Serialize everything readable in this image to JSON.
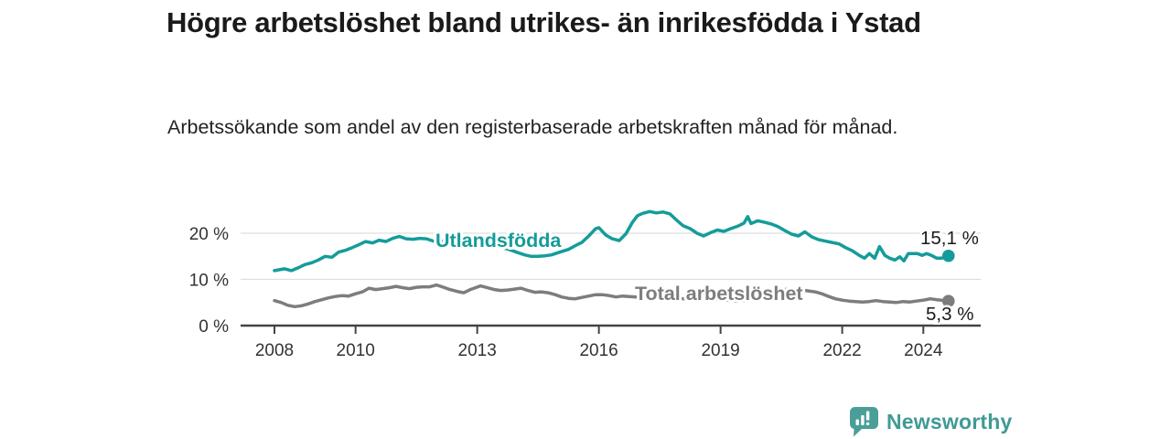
{
  "header": {
    "title": "Högre arbetslöshet bland utrikes- än inrikesfödda i Ystad",
    "subtitle": "Arbetssökande som andel av den registerbaserade arbetskraften månad för månad."
  },
  "chart_data": {
    "type": "line",
    "title": "Högre arbetslöshet bland utrikes- än inrikesfödda i Ystad",
    "subtitle": "Arbetssökande som andel av den registerbaserade arbetskraften månad för månad.",
    "xlabel": "",
    "ylabel": "",
    "grid": "horizontal",
    "legend_position": "inline-labels",
    "xlim": [
      2007.2,
      2025.3
    ],
    "ylim": [
      0,
      26
    ],
    "x_tick_labels": [
      "2008",
      "2010",
      "2013",
      "2016",
      "2019",
      "2022",
      "2024"
    ],
    "x_tick_years": [
      2008,
      2010,
      2013,
      2016,
      2019,
      2022,
      2024
    ],
    "y_ticks": [
      20,
      10,
      0
    ],
    "y_tick_labels": [
      "20 %",
      "10 %",
      "0 %"
    ],
    "series": [
      {
        "name": "Utlandsfödda",
        "color": "#149c9a",
        "end_label": "15,1 %",
        "end_value": 15.1,
        "points": [
          [
            2008.0,
            11.9
          ],
          [
            2008.25,
            12.3
          ],
          [
            2008.42,
            11.9
          ],
          [
            2008.58,
            12.5
          ],
          [
            2008.75,
            13.2
          ],
          [
            2008.92,
            13.6
          ],
          [
            2009.08,
            14.2
          ],
          [
            2009.25,
            15.0
          ],
          [
            2009.42,
            14.8
          ],
          [
            2009.58,
            15.9
          ],
          [
            2009.75,
            16.3
          ],
          [
            2009.92,
            16.9
          ],
          [
            2010.08,
            17.5
          ],
          [
            2010.25,
            18.2
          ],
          [
            2010.42,
            17.9
          ],
          [
            2010.58,
            18.5
          ],
          [
            2010.75,
            18.2
          ],
          [
            2010.92,
            18.9
          ],
          [
            2011.08,
            19.3
          ],
          [
            2011.25,
            18.8
          ],
          [
            2011.42,
            18.7
          ],
          [
            2011.58,
            18.9
          ],
          [
            2011.75,
            18.8
          ],
          [
            2011.92,
            18.3
          ],
          [
            2012.08,
            18.4
          ],
          [
            2012.25,
            18.1
          ],
          [
            2012.5,
            17.8
          ],
          [
            2012.75,
            17.6
          ],
          [
            2013.0,
            17.4
          ],
          [
            2013.25,
            17.2
          ],
          [
            2013.5,
            17.0
          ],
          [
            2013.75,
            16.6
          ],
          [
            2014.0,
            15.8
          ],
          [
            2014.17,
            15.3
          ],
          [
            2014.33,
            15.0
          ],
          [
            2014.5,
            15.0
          ],
          [
            2014.67,
            15.1
          ],
          [
            2014.83,
            15.3
          ],
          [
            2015.0,
            15.8
          ],
          [
            2015.25,
            16.5
          ],
          [
            2015.42,
            17.3
          ],
          [
            2015.58,
            18.0
          ],
          [
            2015.75,
            19.4
          ],
          [
            2015.92,
            21.0
          ],
          [
            2016.0,
            21.2
          ],
          [
            2016.17,
            19.6
          ],
          [
            2016.33,
            18.8
          ],
          [
            2016.5,
            18.4
          ],
          [
            2016.67,
            19.9
          ],
          [
            2016.83,
            22.4
          ],
          [
            2016.95,
            23.8
          ],
          [
            2017.08,
            24.3
          ],
          [
            2017.25,
            24.7
          ],
          [
            2017.42,
            24.4
          ],
          [
            2017.58,
            24.6
          ],
          [
            2017.75,
            24.2
          ],
          [
            2017.92,
            22.8
          ],
          [
            2018.08,
            21.6
          ],
          [
            2018.25,
            21.0
          ],
          [
            2018.42,
            20.0
          ],
          [
            2018.58,
            19.4
          ],
          [
            2018.75,
            20.1
          ],
          [
            2018.92,
            20.7
          ],
          [
            2019.08,
            20.4
          ],
          [
            2019.25,
            21.0
          ],
          [
            2019.42,
            21.5
          ],
          [
            2019.58,
            22.2
          ],
          [
            2019.67,
            23.6
          ],
          [
            2019.75,
            22.1
          ],
          [
            2019.92,
            22.7
          ],
          [
            2020.08,
            22.4
          ],
          [
            2020.25,
            22.0
          ],
          [
            2020.42,
            21.4
          ],
          [
            2020.58,
            20.6
          ],
          [
            2020.75,
            19.8
          ],
          [
            2020.92,
            19.4
          ],
          [
            2021.08,
            20.3
          ],
          [
            2021.25,
            19.2
          ],
          [
            2021.42,
            18.6
          ],
          [
            2021.58,
            18.3
          ],
          [
            2021.75,
            18.0
          ],
          [
            2021.92,
            17.7
          ],
          [
            2022.08,
            16.9
          ],
          [
            2022.25,
            16.2
          ],
          [
            2022.42,
            15.2
          ],
          [
            2022.55,
            14.6
          ],
          [
            2022.67,
            15.6
          ],
          [
            2022.8,
            14.6
          ],
          [
            2022.92,
            17.1
          ],
          [
            2023.05,
            15.2
          ],
          [
            2023.17,
            14.6
          ],
          [
            2023.3,
            14.2
          ],
          [
            2023.42,
            14.9
          ],
          [
            2023.52,
            14.0
          ],
          [
            2023.63,
            15.6
          ],
          [
            2023.85,
            15.6
          ],
          [
            2023.97,
            15.2
          ],
          [
            2024.08,
            15.6
          ],
          [
            2024.2,
            15.2
          ],
          [
            2024.33,
            14.6
          ],
          [
            2024.45,
            14.6
          ],
          [
            2024.55,
            14.9
          ],
          [
            2024.62,
            15.1
          ]
        ]
      },
      {
        "name": "Total arbetslöshet",
        "color": "#7d7d7d",
        "end_label": "5,3 %",
        "end_value": 5.3,
        "points": [
          [
            2008.0,
            5.4
          ],
          [
            2008.17,
            5.0
          ],
          [
            2008.33,
            4.4
          ],
          [
            2008.5,
            4.1
          ],
          [
            2008.67,
            4.3
          ],
          [
            2008.83,
            4.7
          ],
          [
            2009.0,
            5.2
          ],
          [
            2009.17,
            5.6
          ],
          [
            2009.33,
            6.0
          ],
          [
            2009.5,
            6.3
          ],
          [
            2009.67,
            6.5
          ],
          [
            2009.83,
            6.4
          ],
          [
            2010.0,
            6.9
          ],
          [
            2010.17,
            7.3
          ],
          [
            2010.33,
            8.1
          ],
          [
            2010.5,
            7.8
          ],
          [
            2010.67,
            8.0
          ],
          [
            2010.83,
            8.2
          ],
          [
            2011.0,
            8.5
          ],
          [
            2011.17,
            8.2
          ],
          [
            2011.33,
            8.0
          ],
          [
            2011.5,
            8.3
          ],
          [
            2011.67,
            8.4
          ],
          [
            2011.83,
            8.4
          ],
          [
            2012.0,
            8.8
          ],
          [
            2012.17,
            8.3
          ],
          [
            2012.33,
            7.8
          ],
          [
            2012.5,
            7.4
          ],
          [
            2012.67,
            7.1
          ],
          [
            2012.83,
            7.8
          ],
          [
            2013.08,
            8.6
          ],
          [
            2013.25,
            8.2
          ],
          [
            2013.42,
            7.8
          ],
          [
            2013.58,
            7.6
          ],
          [
            2013.75,
            7.7
          ],
          [
            2013.92,
            7.9
          ],
          [
            2014.08,
            8.1
          ],
          [
            2014.25,
            7.6
          ],
          [
            2014.42,
            7.2
          ],
          [
            2014.58,
            7.3
          ],
          [
            2014.75,
            7.1
          ],
          [
            2014.92,
            6.7
          ],
          [
            2015.08,
            6.2
          ],
          [
            2015.25,
            5.9
          ],
          [
            2015.42,
            5.8
          ],
          [
            2015.58,
            6.1
          ],
          [
            2015.75,
            6.4
          ],
          [
            2015.92,
            6.7
          ],
          [
            2016.08,
            6.7
          ],
          [
            2016.25,
            6.5
          ],
          [
            2016.42,
            6.2
          ],
          [
            2016.58,
            6.4
          ],
          [
            2016.75,
            6.3
          ],
          [
            2016.92,
            6.2
          ],
          [
            2017.17,
            6.0
          ],
          [
            2017.42,
            5.8
          ],
          [
            2017.67,
            5.8
          ],
          [
            2017.92,
            6.0
          ],
          [
            2018.17,
            5.7
          ],
          [
            2018.42,
            5.5
          ],
          [
            2018.67,
            5.6
          ],
          [
            2018.92,
            5.7
          ],
          [
            2019.17,
            5.5
          ],
          [
            2019.42,
            5.3
          ],
          [
            2019.67,
            5.5
          ],
          [
            2019.92,
            5.9
          ],
          [
            2020.17,
            6.8
          ],
          [
            2020.42,
            7.6
          ],
          [
            2020.67,
            7.9
          ],
          [
            2020.92,
            7.8
          ],
          [
            2021.17,
            7.5
          ],
          [
            2021.33,
            7.3
          ],
          [
            2021.5,
            6.9
          ],
          [
            2021.67,
            6.3
          ],
          [
            2021.83,
            5.8
          ],
          [
            2022.0,
            5.5
          ],
          [
            2022.17,
            5.3
          ],
          [
            2022.33,
            5.2
          ],
          [
            2022.5,
            5.1
          ],
          [
            2022.67,
            5.2
          ],
          [
            2022.83,
            5.4
          ],
          [
            2023.0,
            5.2
          ],
          [
            2023.17,
            5.1
          ],
          [
            2023.33,
            5.0
          ],
          [
            2023.5,
            5.2
          ],
          [
            2023.67,
            5.1
          ],
          [
            2023.83,
            5.3
          ],
          [
            2024.0,
            5.5
          ],
          [
            2024.17,
            5.8
          ],
          [
            2024.33,
            5.6
          ],
          [
            2024.45,
            5.5
          ],
          [
            2024.62,
            5.3
          ]
        ]
      }
    ]
  },
  "footer": {
    "brand": "Newsworthy",
    "logo_icon": "bar-chart-speech-bubble-icon",
    "brand_color": "#3f9a94",
    "logo_bubble_color": "#4a9e98"
  },
  "colors": {
    "title": "#1a1a1a",
    "subtitle": "#222222",
    "axis_text": "#333333",
    "gridline": "#dedede",
    "axis_line": "#444444",
    "end_label_text": "#1a1a1a"
  }
}
